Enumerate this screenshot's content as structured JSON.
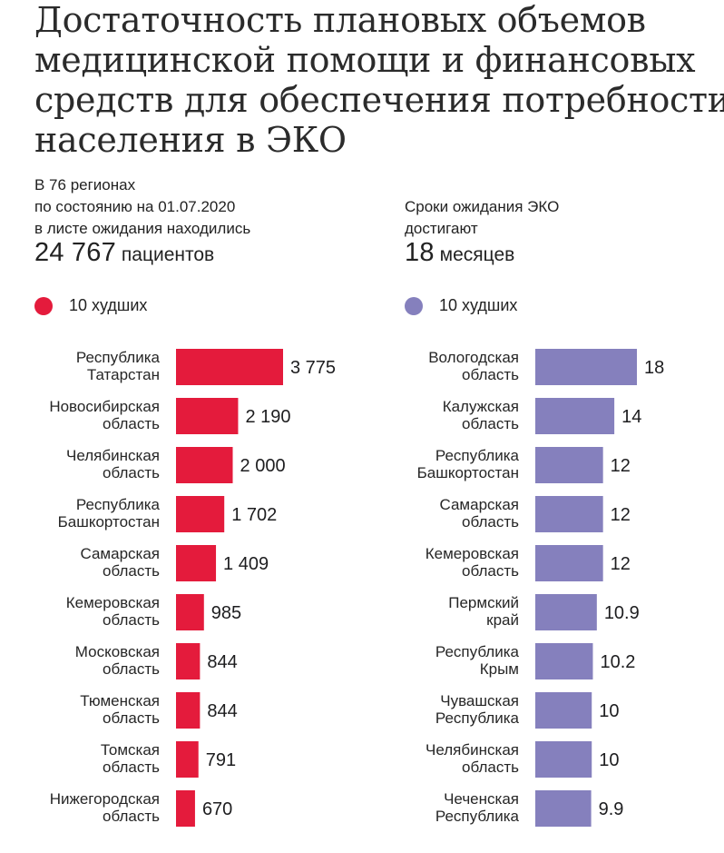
{
  "title_lines": [
    "Достаточность плановых объемов",
    "медицинской помощи и финансовых",
    "средств для обеспечения потребности",
    "населения в ЭКО"
  ],
  "left_stat": {
    "lines": [
      "В 76 регионах",
      "по состоянию на 01.07.2020",
      "в листе ожидания находились"
    ],
    "number": "24 767",
    "unit": "пациентов"
  },
  "right_stat": {
    "lines": [
      "Сроки ожидания ЭКО",
      "достигают"
    ],
    "number": "18",
    "unit": "месяцев"
  },
  "colors": {
    "left": "#e41b3c",
    "right": "#8580bd"
  },
  "chart_data": [
    {
      "type": "bar",
      "orientation": "horizontal",
      "legend": "10 худших",
      "color": "#e41b3c",
      "categories": [
        [
          "Республика",
          "Татарстан"
        ],
        [
          "Новосибирская",
          "область"
        ],
        [
          "Челябинская",
          "область"
        ],
        [
          "Республика",
          "Башкортостан"
        ],
        [
          "Самарская",
          "область"
        ],
        [
          "Кемеровская",
          "область"
        ],
        [
          "Московская",
          "область"
        ],
        [
          "Тюменская",
          "область"
        ],
        [
          "Томская",
          "область"
        ],
        [
          "Нижегородская",
          "область"
        ]
      ],
      "values": [
        3775,
        2190,
        2000,
        1702,
        1409,
        985,
        844,
        844,
        791,
        670
      ],
      "value_labels": [
        "3 775",
        "2 190",
        "2 000",
        "1 702",
        "1 409",
        "985",
        "844",
        "844",
        "791",
        "670"
      ],
      "xlim": [
        0,
        3775
      ]
    },
    {
      "type": "bar",
      "orientation": "horizontal",
      "legend": "10 худших",
      "color": "#8580bd",
      "categories": [
        [
          "Вологодская",
          "область"
        ],
        [
          "Калужская",
          "область"
        ],
        [
          "Республика",
          "Башкортостан"
        ],
        [
          "Самарская",
          "область"
        ],
        [
          "Кемеровская",
          "область"
        ],
        [
          "Пермский",
          "край"
        ],
        [
          "Республика",
          "Крым"
        ],
        [
          "Чувашская",
          "Республика"
        ],
        [
          "Челябинская",
          "область"
        ],
        [
          "Чеченская",
          "Республика"
        ]
      ],
      "values": [
        18,
        14,
        12,
        12,
        12,
        10.9,
        10.2,
        10,
        10,
        9.9
      ],
      "value_labels": [
        "18",
        "14",
        "12",
        "12",
        "12",
        "10.9",
        "10.2",
        "10",
        "10",
        "9.9"
      ],
      "xlim": [
        0,
        18
      ]
    }
  ]
}
